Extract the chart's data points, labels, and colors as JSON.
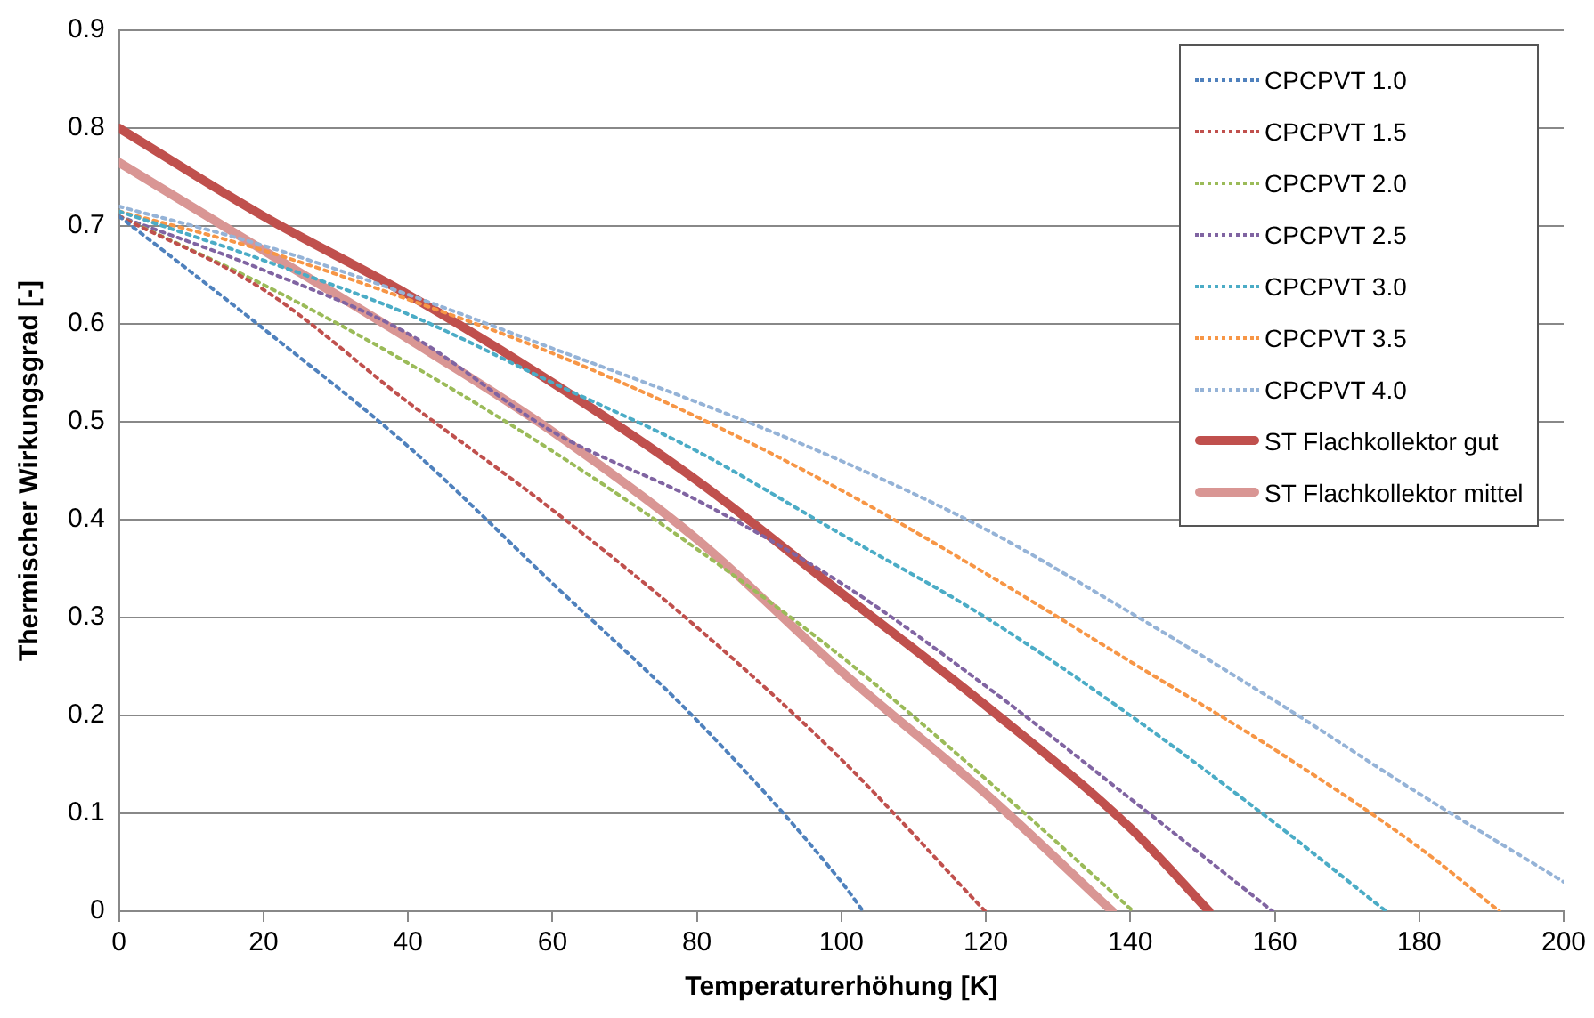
{
  "chart_data": {
    "type": "line",
    "xlabel": "Temperaturerhöhung [K]",
    "ylabel": "Thermischer Wirkungsgrad [-]",
    "xlim": [
      0,
      200
    ],
    "xticks": [
      0,
      20,
      40,
      60,
      80,
      100,
      120,
      140,
      160,
      180,
      200
    ],
    "ylim": [
      0,
      0.9
    ],
    "yticks": [
      0,
      0.1,
      0.2,
      0.3,
      0.4,
      0.5,
      0.6,
      0.7,
      0.8,
      0.9
    ],
    "grid": "y",
    "legend": "top right",
    "marker": "none",
    "series": [
      {
        "name": "CPCPVT 1.0",
        "color": "#4f81bd",
        "line_style": "dotted",
        "x": [
          0,
          20,
          40,
          60,
          80,
          100,
          103
        ],
        "values": [
          0.71,
          0.595,
          0.475,
          0.335,
          0.195,
          0.03,
          0
        ]
      },
      {
        "name": "CPCPVT 1.5",
        "color": "#c0504d",
        "line_style": "dotted",
        "x": [
          0,
          20,
          40,
          60,
          80,
          100,
          119.9
        ],
        "values": [
          0.71,
          0.635,
          0.52,
          0.41,
          0.29,
          0.155,
          0
        ]
      },
      {
        "name": "CPCPVT 2.0",
        "color": "#9bbb59",
        "line_style": "dotted",
        "x": [
          0,
          20,
          40,
          60,
          80,
          100,
          120,
          140.4
        ],
        "values": [
          0.71,
          0.64,
          0.56,
          0.47,
          0.37,
          0.26,
          0.135,
          0
        ]
      },
      {
        "name": "CPCPVT 2.5",
        "color": "#8064a2",
        "line_style": "dotted",
        "x": [
          0,
          20,
          40,
          60,
          80,
          100,
          120,
          140,
          159.7
        ],
        "values": [
          0.71,
          0.655,
          0.59,
          0.49,
          0.42,
          0.335,
          0.23,
          0.115,
          0
        ]
      },
      {
        "name": "CPCPVT 3.0",
        "color": "#4bacc6",
        "line_style": "dotted",
        "x": [
          0,
          20,
          40,
          60,
          80,
          100,
          120,
          140,
          160,
          175.4
        ],
        "values": [
          0.715,
          0.665,
          0.61,
          0.54,
          0.47,
          0.385,
          0.3,
          0.2,
          0.09,
          0
        ]
      },
      {
        "name": "CPCPVT 3.5",
        "color": "#f79646",
        "line_style": "dotted",
        "x": [
          0,
          20,
          40,
          60,
          80,
          100,
          120,
          140,
          160,
          180,
          191.1
        ],
        "values": [
          0.715,
          0.675,
          0.625,
          0.57,
          0.505,
          0.43,
          0.345,
          0.255,
          0.165,
          0.065,
          0
        ]
      },
      {
        "name": "CPCPVT 4.0",
        "color": "#95b3d7",
        "line_style": "dotted",
        "x": [
          0,
          20,
          40,
          60,
          80,
          100,
          120,
          140,
          160,
          180,
          200
        ],
        "values": [
          0.72,
          0.68,
          0.63,
          0.575,
          0.52,
          0.46,
          0.39,
          0.305,
          0.215,
          0.12,
          0.03
        ]
      },
      {
        "name": "ST Flachkollektor gut",
        "color": "#c0504d",
        "line_style": "solid",
        "x": [
          0,
          20,
          40,
          60,
          80,
          100,
          120,
          140,
          150.9
        ],
        "values": [
          0.8,
          0.71,
          0.63,
          0.54,
          0.44,
          0.325,
          0.21,
          0.085,
          0
        ]
      },
      {
        "name": "ST Flachkollektor mittel",
        "color": "#d99694",
        "line_style": "solid",
        "x": [
          0,
          20,
          40,
          60,
          80,
          100,
          120,
          137.5
        ],
        "values": [
          0.765,
          0.675,
          0.585,
          0.49,
          0.38,
          0.245,
          0.12,
          0
        ]
      }
    ]
  }
}
